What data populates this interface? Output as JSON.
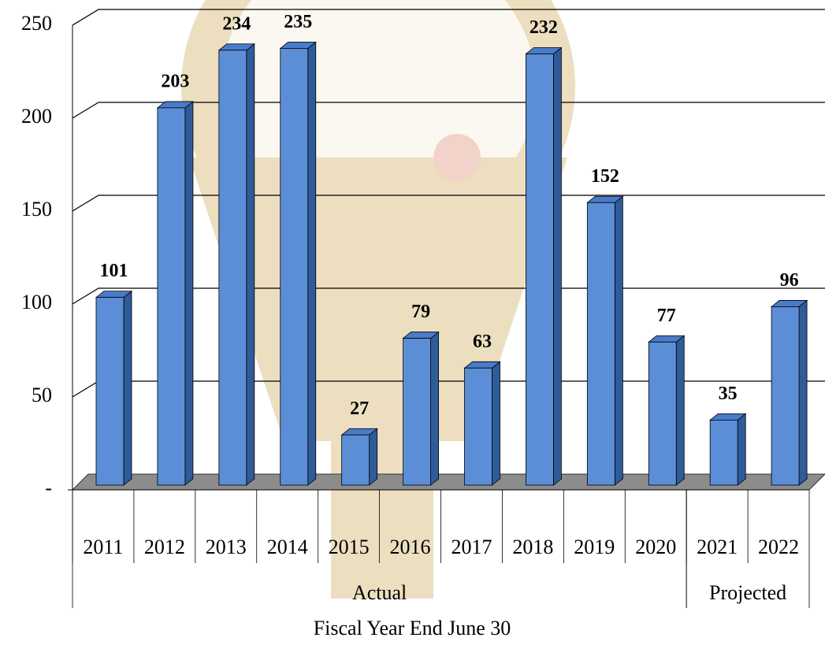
{
  "chart_data": {
    "type": "bar3d",
    "x_label": "Fiscal Year End June 30",
    "categories": [
      "2011",
      "2012",
      "2013",
      "2014",
      "2015",
      "2016",
      "2017",
      "2018",
      "2019",
      "2020",
      "2021",
      "2022"
    ],
    "values": [
      101,
      203,
      234,
      235,
      27,
      79,
      63,
      232,
      152,
      77,
      35,
      96
    ],
    "groups": [
      {
        "label": "Actual",
        "from": "2011",
        "to": "2020"
      },
      {
        "label": "Projected",
        "from": "2021",
        "to": "2022"
      }
    ],
    "color": "#5b8ed6",
    "ylim": [
      0,
      250
    ],
    "yticks": [
      {
        "value": 0,
        "label": "-"
      },
      50,
      100,
      150,
      200,
      250
    ],
    "grid": true
  }
}
